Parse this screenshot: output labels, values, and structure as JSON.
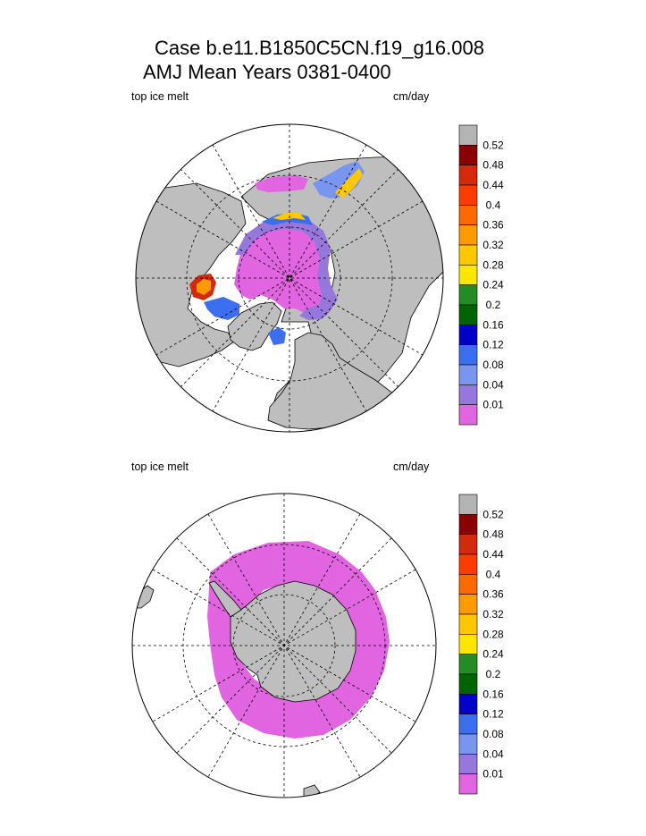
{
  "title": {
    "line1": "Case b.e11.B1850C5CN.f19_g16.008",
    "line2": "AMJ Mean    Years 0381-0400"
  },
  "panels": [
    {
      "id": "north",
      "left_label": "top ice melt",
      "right_label": "cm/day",
      "hemisphere": "north"
    },
    {
      "id": "south",
      "left_label": "top ice melt",
      "right_label": "cm/day",
      "hemisphere": "south"
    }
  ],
  "colorbar": {
    "levels": [
      "0.52",
      "0.48",
      "0.44",
      "0.4",
      "0.36",
      "0.32",
      "0.28",
      "0.24",
      "0.2",
      "0.16",
      "0.12",
      "0.08",
      "0.04",
      "0.01"
    ],
    "colors": [
      "#b4b4b4",
      "#8b0000",
      "#d22a0a",
      "#ff3c00",
      "#ff6a00",
      "#ff9b00",
      "#ffc800",
      "#ffe600",
      "#238c23",
      "#006400",
      "#0000c8",
      "#3c6ef0",
      "#7896f0",
      "#9678dc",
      "#e164e1"
    ],
    "land_color": "#bebebe",
    "missing_color": "#b4b4b4"
  }
}
